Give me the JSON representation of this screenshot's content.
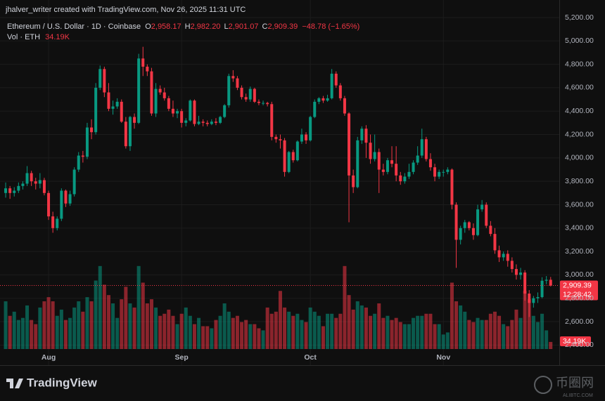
{
  "chart_data": {
    "type": "candlestick",
    "credit": "jhalver_writer created with TradingView.com, Nov 26, 2025 11:31 UTC",
    "symbol": "Ethereum / U.S. Dollar · 1D · Coinbase",
    "ohlc_letters": [
      "O",
      "H",
      "L",
      "C"
    ],
    "ohlc_labels": [
      "2,958.17",
      "2,982.20",
      "2,901.07",
      "2,909.39"
    ],
    "change_label": "−48.78 (−1.65%)",
    "volume_title": "Vol · ETH",
    "volume_label": "34.19K",
    "last_price_label": "2,909.39",
    "countdown": "12:28:42",
    "brand": "TradingView",
    "watermark": "币圈网",
    "watermark_sub": "ALIBTC.COM",
    "up_color": "#089981",
    "down_color": "#f23645",
    "grid": true,
    "ylim": [
      2360,
      5260
    ],
    "yticks": [
      {
        "value": 2400,
        "label": "2,400.00"
      },
      {
        "value": 2600,
        "label": "2,600.00"
      },
      {
        "value": 2800,
        "label": "2,800.00"
      },
      {
        "value": 3000,
        "label": "3,000.00"
      },
      {
        "value": 3200,
        "label": "3,200.00"
      },
      {
        "value": 3400,
        "label": "3,400.00"
      },
      {
        "value": 3600,
        "label": "3,600.00"
      },
      {
        "value": 3800,
        "label": "3,800.00"
      },
      {
        "value": 4000,
        "label": "4,000.00"
      },
      {
        "value": 4200,
        "label": "4,200.00"
      },
      {
        "value": 4400,
        "label": "4,400.00"
      },
      {
        "value": 4600,
        "label": "4,600.00"
      },
      {
        "value": 4800,
        "label": "4,800.00"
      },
      {
        "value": 5000,
        "label": "5,000.00"
      },
      {
        "value": 5200,
        "label": "5,200.00"
      }
    ],
    "volume_lim": [
      0,
      440
    ],
    "categories": [
      null,
      null,
      null,
      null,
      null,
      null,
      null,
      null,
      null,
      null,
      "Aug",
      null,
      null,
      null,
      null,
      null,
      null,
      null,
      null,
      null,
      null,
      null,
      null,
      null,
      null,
      null,
      null,
      null,
      null,
      null,
      null,
      null,
      null,
      null,
      null,
      null,
      null,
      null,
      null,
      null,
      null,
      "Sep",
      null,
      null,
      null,
      null,
      null,
      null,
      null,
      null,
      null,
      null,
      null,
      null,
      null,
      null,
      null,
      null,
      null,
      null,
      null,
      null,
      null,
      null,
      null,
      null,
      null,
      null,
      null,
      null,
      null,
      "Oct",
      null,
      null,
      null,
      null,
      null,
      null,
      null,
      null,
      null,
      null,
      null,
      null,
      null,
      null,
      null,
      null,
      null,
      null,
      null,
      null,
      null,
      null,
      null,
      null,
      null,
      null,
      null,
      null,
      null,
      null,
      "Nov",
      null,
      null,
      null,
      null,
      null,
      null,
      null,
      null,
      null,
      null,
      null,
      null,
      null,
      null,
      null,
      null,
      null,
      null,
      null,
      null,
      null,
      null,
      null,
      null,
      null
    ],
    "open": [
      3700,
      3740,
      3700,
      3720,
      3760,
      3780,
      3870,
      3800,
      3780,
      3810,
      3700,
      3500,
      3400,
      3480,
      3720,
      3610,
      3690,
      3900,
      4020,
      4010,
      4260,
      4220,
      4600,
      4760,
      4560,
      4420,
      4440,
      4480,
      4310,
      4100,
      4350,
      4300,
      4850,
      4780,
      4740,
      4380,
      4590,
      4560,
      4510,
      4420,
      4380,
      4400,
      4300,
      4320,
      4490,
      4290,
      4310,
      4300,
      4290,
      4310,
      4300,
      4350,
      4450,
      4700,
      4680,
      4600,
      4520,
      4500,
      4590,
      4480,
      4470,
      4470,
      4460,
      4180,
      4160,
      4150,
      3880,
      4050,
      3980,
      4140,
      4200,
      4150,
      4350,
      4480,
      4510,
      4490,
      4510,
      4720,
      4620,
      4510,
      4380,
      3850,
      3750,
      4150,
      4250,
      4130,
      3990,
      4050,
      3900,
      3880,
      3980,
      3950,
      3850,
      3800,
      3840,
      3880,
      3960,
      4020,
      4160,
      3990,
      3920,
      3840,
      3880,
      3880,
      3900,
      3600,
      3300,
      3400,
      3450,
      3400,
      3340,
      3560,
      3600,
      3420,
      3350,
      3210,
      3150,
      3180,
      3120,
      3050,
      3000,
      3020,
      2840,
      2760,
      2800,
      2810,
      2950,
      2958.17
    ],
    "high": [
      3790,
      3760,
      3750,
      3790,
      3800,
      3930,
      3890,
      3830,
      3870,
      3830,
      3720,
      3540,
      3500,
      3740,
      3730,
      3720,
      3920,
      4050,
      4060,
      4300,
      4330,
      4640,
      4790,
      4780,
      4640,
      4490,
      4510,
      4500,
      4350,
      4360,
      4380,
      4890,
      4950,
      4800,
      4770,
      4640,
      4620,
      4600,
      4530,
      4490,
      4420,
      4420,
      4340,
      4500,
      4500,
      4360,
      4330,
      4320,
      4330,
      4340,
      4360,
      4460,
      4720,
      4750,
      4700,
      4620,
      4550,
      4610,
      4600,
      4500,
      4490,
      4480,
      4480,
      4200,
      4200,
      4170,
      4060,
      4070,
      4150,
      4250,
      4220,
      4360,
      4500,
      4520,
      4530,
      4540,
      4760,
      4740,
      4640,
      4530,
      4390,
      3900,
      4180,
      4270,
      4280,
      4200,
      4200,
      4080,
      3950,
      4000,
      4100,
      4100,
      3880,
      3870,
      3950,
      3980,
      4100,
      4250,
      4180,
      4040,
      3950,
      3900,
      3900,
      3920,
      3910,
      3620,
      3420,
      3470,
      3460,
      3440,
      3600,
      3640,
      3620,
      3460,
      3400,
      3250,
      3200,
      3210,
      3150,
      3090,
      3060,
      3040,
      2870,
      2820,
      2850,
      2980,
      2990,
      2982.2
    ],
    "low": [
      3660,
      3650,
      3670,
      3700,
      3730,
      3760,
      3760,
      3730,
      3740,
      3680,
      3470,
      3360,
      3380,
      3460,
      3580,
      3590,
      3670,
      3880,
      3960,
      3990,
      4160,
      4200,
      4580,
      4520,
      4400,
      4370,
      4420,
      4300,
      4080,
      4060,
      4250,
      4290,
      4700,
      4700,
      4360,
      4350,
      4540,
      4490,
      4400,
      4350,
      4340,
      4260,
      4270,
      4310,
      4270,
      4280,
      4270,
      4270,
      4280,
      4280,
      4290,
      4340,
      4430,
      4650,
      4580,
      4500,
      4480,
      4480,
      4470,
      4450,
      4450,
      4440,
      4150,
      4130,
      4080,
      3840,
      3870,
      3960,
      3970,
      4120,
      4120,
      4140,
      4340,
      4460,
      4470,
      4480,
      4500,
      4600,
      4490,
      4360,
      3450,
      3700,
      3740,
      4120,
      4000,
      3950,
      3970,
      3700,
      3850,
      3860,
      3920,
      3800,
      3770,
      3780,
      3820,
      3860,
      3940,
      4000,
      3970,
      3890,
      3800,
      3820,
      3840,
      3860,
      3560,
      3060,
      3260,
      3360,
      3380,
      3300,
      3330,
      3540,
      3400,
      3330,
      3180,
      3110,
      3120,
      3070,
      3020,
      2960,
      2960,
      2780,
      2640,
      2720,
      2760,
      2800,
      2920,
      2901.07
    ],
    "close": [
      3740,
      3700,
      3720,
      3760,
      3780,
      3870,
      3800,
      3780,
      3810,
      3700,
      3500,
      3400,
      3480,
      3720,
      3610,
      3690,
      3900,
      4020,
      4010,
      4260,
      4220,
      4600,
      4760,
      4560,
      4420,
      4440,
      4480,
      4310,
      4100,
      4350,
      4300,
      4850,
      4780,
      4740,
      4380,
      4590,
      4560,
      4510,
      4420,
      4380,
      4400,
      4300,
      4320,
      4490,
      4290,
      4310,
      4300,
      4290,
      4310,
      4300,
      4350,
      4450,
      4700,
      4680,
      4600,
      4520,
      4500,
      4590,
      4480,
      4470,
      4470,
      4460,
      4180,
      4160,
      4150,
      3880,
      4050,
      3980,
      4140,
      4200,
      4150,
      4350,
      4480,
      4510,
      4490,
      4510,
      4720,
      4620,
      4510,
      4380,
      3850,
      3750,
      4150,
      4250,
      4130,
      3990,
      4050,
      3900,
      3880,
      3980,
      3950,
      3850,
      3800,
      3840,
      3880,
      3960,
      4020,
      4160,
      3990,
      3920,
      3840,
      3880,
      3880,
      3900,
      3600,
      3300,
      3400,
      3450,
      3400,
      3340,
      3560,
      3600,
      3420,
      3350,
      3210,
      3150,
      3180,
      3120,
      3050,
      3000,
      3020,
      2840,
      2760,
      2800,
      2810,
      2950,
      2958.17,
      2909.39
    ],
    "volume": [
      230,
      160,
      180,
      140,
      150,
      210,
      140,
      120,
      200,
      230,
      250,
      230,
      160,
      190,
      140,
      150,
      200,
      230,
      180,
      250,
      230,
      330,
      400,
      310,
      260,
      220,
      150,
      240,
      300,
      220,
      200,
      400,
      320,
      220,
      240,
      200,
      160,
      170,
      190,
      160,
      120,
      170,
      200,
      160,
      120,
      150,
      110,
      110,
      100,
      140,
      160,
      220,
      180,
      150,
      160,
      130,
      140,
      120,
      120,
      100,
      90,
      200,
      170,
      180,
      280,
      200,
      180,
      160,
      170,
      140,
      130,
      200,
      180,
      160,
      110,
      170,
      170,
      150,
      170,
      400,
      260,
      190,
      230,
      210,
      200,
      160,
      170,
      220,
      150,
      160,
      140,
      150,
      130,
      120,
      120,
      150,
      160,
      160,
      170,
      170,
      120,
      120,
      70,
      80,
      320,
      230,
      210,
      180,
      140,
      130,
      150,
      140,
      140,
      170,
      180,
      160,
      120,
      110,
      140,
      190,
      150,
      280,
      240,
      160,
      130,
      170,
      90,
      34.19
    ]
  }
}
